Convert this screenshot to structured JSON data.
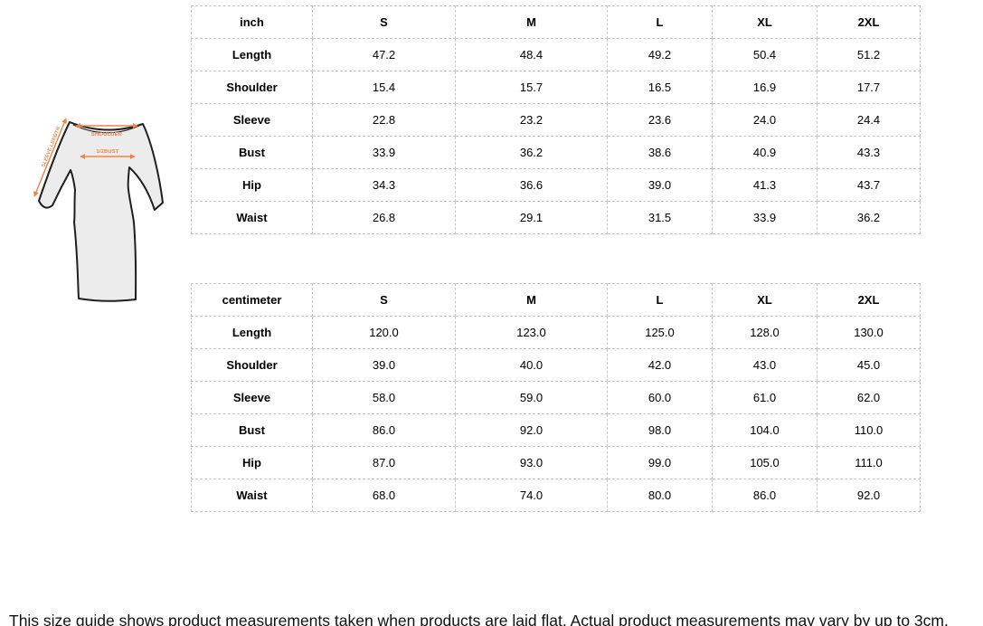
{
  "accent_color": "#f08342",
  "diagram": {
    "shoulder_label": "SHOULDER",
    "half_bust_label": "1/2BUST",
    "sleeve_length_label": "SLEEVE LENGTH"
  },
  "tables": [
    {
      "unit": "inch",
      "sizes": [
        "S",
        "M",
        "L",
        "XL",
        "2XL"
      ],
      "rows": [
        {
          "label": "Length",
          "values": [
            "47.2",
            "48.4",
            "49.2",
            "50.4",
            "51.2"
          ]
        },
        {
          "label": "Shoulder",
          "values": [
            "15.4",
            "15.7",
            "16.5",
            "16.9",
            "17.7"
          ]
        },
        {
          "label": "Sleeve",
          "values": [
            "22.8",
            "23.2",
            "23.6",
            "24.0",
            "24.4"
          ]
        },
        {
          "label": "Bust",
          "values": [
            "33.9",
            "36.2",
            "38.6",
            "40.9",
            "43.3"
          ]
        },
        {
          "label": "Hip",
          "values": [
            "34.3",
            "36.6",
            "39.0",
            "41.3",
            "43.7"
          ]
        },
        {
          "label": "Waist",
          "values": [
            "26.8",
            "29.1",
            "31.5",
            "33.9",
            "36.2"
          ]
        }
      ]
    },
    {
      "unit": "centimeter",
      "sizes": [
        "S",
        "M",
        "L",
        "XL",
        "2XL"
      ],
      "rows": [
        {
          "label": "Length",
          "values": [
            "120.0",
            "123.0",
            "125.0",
            "128.0",
            "130.0"
          ]
        },
        {
          "label": "Shoulder",
          "values": [
            "39.0",
            "40.0",
            "42.0",
            "43.0",
            "45.0"
          ]
        },
        {
          "label": "Sleeve",
          "values": [
            "58.0",
            "59.0",
            "60.0",
            "61.0",
            "62.0"
          ]
        },
        {
          "label": "Bust",
          "values": [
            "86.0",
            "92.0",
            "98.0",
            "104.0",
            "110.0"
          ]
        },
        {
          "label": "Hip",
          "values": [
            "87.0",
            "93.0",
            "99.0",
            "105.0",
            "111.0"
          ]
        },
        {
          "label": "Waist",
          "values": [
            "68.0",
            "74.0",
            "80.0",
            "86.0",
            "92.0"
          ]
        }
      ]
    }
  ],
  "note": "This size guide shows product measurements taken when products are laid flat. Actual product measurements may vary by up to 3cm."
}
